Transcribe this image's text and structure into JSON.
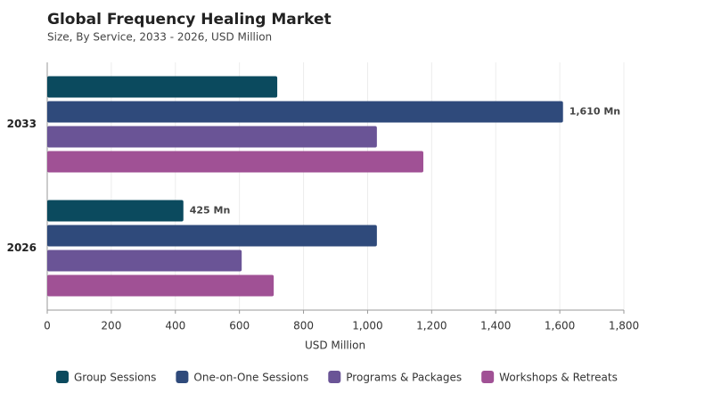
{
  "chart_data": {
    "type": "hbar",
    "title": "Global Frequency Healing Market",
    "subtitle": "Size, By Service, 2033 - 2026, USD Million",
    "x_label": "USD Million",
    "categories": [
      "2033",
      "2026"
    ],
    "series": [
      {
        "name": "Group Sessions",
        "color": "#0b4a5e",
        "values": [
          718,
          425
        ],
        "value_labels": [
          null,
          "425 Mn"
        ]
      },
      {
        "name": "One-on-One Sessions",
        "color": "#2f4a7b",
        "values": [
          1610,
          1029
        ],
        "value_labels": [
          "1,610 Mn",
          null
        ]
      },
      {
        "name": "Programs & Packages",
        "color": "#6a5496",
        "values": [
          1029,
          607
        ]
      },
      {
        "name": "Workshops & Retreats",
        "color": "#a05195",
        "values": [
          1174,
          707
        ]
      }
    ],
    "xlim": [
      0,
      1800
    ],
    "xticks": [
      0,
      200,
      400,
      600,
      800,
      {
        "value": 1000,
        "label": "1,000"
      },
      {
        "value": 1200,
        "label": "1,200"
      },
      {
        "value": 1400,
        "label": "1,400"
      },
      {
        "value": 1600,
        "label": "1,600"
      },
      {
        "value": 1800,
        "label": "1,800"
      }
    ],
    "grid": true
  }
}
